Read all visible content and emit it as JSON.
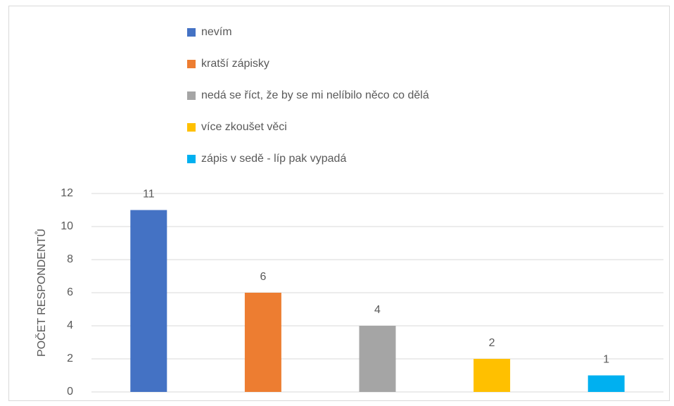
{
  "chart_data": {
    "type": "bar",
    "y_label": "POČET RESPONDENTŮ",
    "categories": [
      "nevím",
      "kratší zápisky",
      "nedá se říct, že by se mi nelíbilo něco co dělá",
      "více zkoušet věci",
      "zápis v sedě - líp pak vypadá"
    ],
    "values": [
      11,
      6,
      4,
      2,
      1
    ],
    "colors": [
      "#4472c4",
      "#ed7d31",
      "#a5a5a5",
      "#ffc000",
      "#00b0f0"
    ],
    "ylim": [
      0,
      12
    ],
    "yticks": [
      0,
      2,
      4,
      6,
      8,
      10,
      12
    ],
    "grid": true,
    "legend": "top"
  }
}
